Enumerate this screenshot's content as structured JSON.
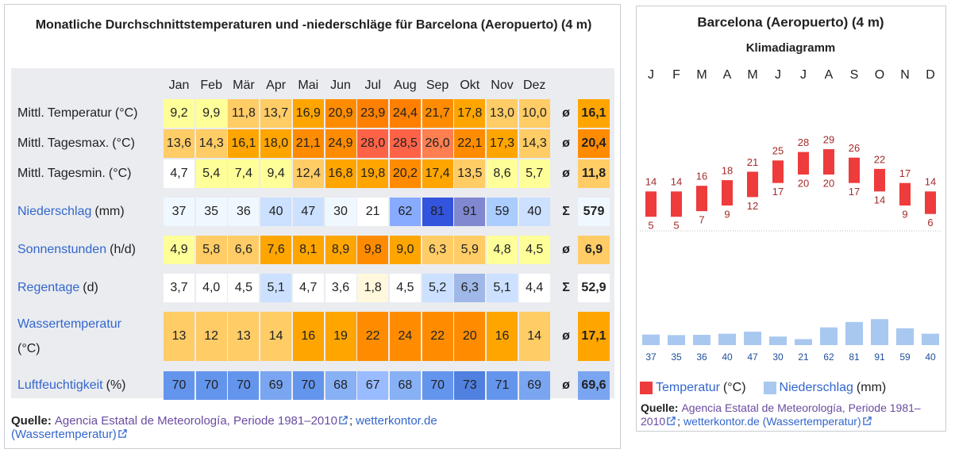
{
  "table": {
    "title": "Monatliche Durchschnittstemperaturen und -niederschläge für Barcelona (Aeropuerto) (4 m)",
    "months": [
      "Jan",
      "Feb",
      "Mär",
      "Apr",
      "Mai",
      "Jun",
      "Jul",
      "Aug",
      "Sep",
      "Okt",
      "Nov",
      "Dez"
    ],
    "rows": [
      {
        "label": "Mittl. Temperatur",
        "unit": "(°C)",
        "link": false,
        "values": [
          "9,2",
          "9,9",
          "11,8",
          "13,7",
          "16,9",
          "20,9",
          "23,9",
          "24,4",
          "21,7",
          "17,8",
          "13,0",
          "10,0"
        ],
        "colors": [
          "#ffff99",
          "#ffff99",
          "#ffcc66",
          "#ffcc66",
          "#ffa500",
          "#ff8c00",
          "#ff8000",
          "#ff8000",
          "#ff8c00",
          "#ffa500",
          "#ffcc66",
          "#ffcc66"
        ],
        "summary_symbol": "ø",
        "summary": "16,1",
        "summary_color": "#ffa500"
      },
      {
        "label": "Mittl. Tagesmax.",
        "unit": "(°C)",
        "link": false,
        "values": [
          "13,6",
          "14,3",
          "16,1",
          "18,0",
          "21,1",
          "24,9",
          "28,0",
          "28,5",
          "26,0",
          "22,1",
          "17,3",
          "14,3"
        ],
        "colors": [
          "#ffcc66",
          "#ffcc66",
          "#ffa500",
          "#ffa500",
          "#ff8c00",
          "#ff8c00",
          "#ff6347",
          "#ff6347",
          "#ff7f50",
          "#ff8c00",
          "#ffa500",
          "#ffcc66"
        ],
        "summary_symbol": "ø",
        "summary": "20,4",
        "summary_color": "#ff8c00"
      },
      {
        "label": "Mittl. Tagesmin.",
        "unit": "(°C)",
        "link": false,
        "values": [
          "4,7",
          "5,4",
          "7,4",
          "9,4",
          "12,4",
          "16,8",
          "19,8",
          "20,2",
          "17,4",
          "13,5",
          "8,6",
          "5,7"
        ],
        "colors": [
          "#ffffff",
          "#ffff99",
          "#ffff99",
          "#ffff99",
          "#ffcc66",
          "#ffa500",
          "#ffa500",
          "#ff8c00",
          "#ffa500",
          "#ffcc66",
          "#ffff99",
          "#ffff99"
        ],
        "summary_symbol": "ø",
        "summary": "11,8",
        "summary_color": "#ffcc66"
      },
      {
        "label": "Niederschlag",
        "unit": "(mm)",
        "link": true,
        "values": [
          "37",
          "35",
          "36",
          "40",
          "47",
          "30",
          "21",
          "62",
          "81",
          "91",
          "59",
          "40"
        ],
        "colors": [
          "#f0f8ff",
          "#f0f8ff",
          "#f0f8ff",
          "#cce0ff",
          "#cce0ff",
          "#f0f8ff",
          "#ffffff",
          "#88aaff",
          "#3355dd",
          "#8088d0",
          "#aaccff",
          "#cce0ff"
        ],
        "summary_symbol": "Σ",
        "summary": "579",
        "summary_color": "#f0f8ff"
      },
      {
        "label": "Sonnenstunden",
        "unit": "(h/d)",
        "link": true,
        "values": [
          "4,9",
          "5,8",
          "6,6",
          "7,6",
          "8,1",
          "8,9",
          "9,8",
          "9,0",
          "6,3",
          "5,9",
          "4,8",
          "4,5"
        ],
        "colors": [
          "#ffff99",
          "#ffcc66",
          "#ffcc66",
          "#ffa500",
          "#ffa500",
          "#ffa500",
          "#ff8c00",
          "#ffa500",
          "#ffcc66",
          "#ffcc66",
          "#ffff99",
          "#ffff99"
        ],
        "summary_symbol": "ø",
        "summary": "6,9",
        "summary_color": "#ffcc66"
      },
      {
        "label": "Regentage",
        "unit": "(d)",
        "link": true,
        "values": [
          "3,7",
          "4,0",
          "4,5",
          "5,1",
          "4,7",
          "3,6",
          "1,8",
          "4,5",
          "5,2",
          "6,3",
          "5,1",
          "4,4"
        ],
        "colors": [
          "#ffffff",
          "#ffffff",
          "#ffffff",
          "#cce0ff",
          "#ffffff",
          "#ffffff",
          "#fff8dc",
          "#ffffff",
          "#cce0ff",
          "#a0b8e8",
          "#cce0ff",
          "#ffffff"
        ],
        "summary_symbol": "Σ",
        "summary": "52,9",
        "summary_color": "#ffffff"
      },
      {
        "label": "Wassertemperatur",
        "unit": "(°C)",
        "link": true,
        "values": [
          "13",
          "12",
          "13",
          "14",
          "16",
          "19",
          "22",
          "24",
          "22",
          "20",
          "16",
          "14"
        ],
        "colors": [
          "#ffcc66",
          "#ffcc66",
          "#ffcc66",
          "#ffcc66",
          "#ffa500",
          "#ffa500",
          "#ff8c00",
          "#ff8c00",
          "#ff8c00",
          "#ff8c00",
          "#ffa500",
          "#ffcc66"
        ],
        "summary_symbol": "ø",
        "summary": "17,1",
        "summary_color": "#ffa500"
      },
      {
        "label": "Luftfeuchtigkeit",
        "unit": "(%)",
        "link": true,
        "values": [
          "70",
          "70",
          "70",
          "69",
          "70",
          "68",
          "67",
          "68",
          "70",
          "73",
          "71",
          "69"
        ],
        "colors": [
          "#6495ed",
          "#6495ed",
          "#6495ed",
          "#7aa5f0",
          "#6495ed",
          "#87b0f5",
          "#99bbff",
          "#87b0f5",
          "#6495ed",
          "#5080e0",
          "#6495ed",
          "#7aa5f0"
        ],
        "summary_symbol": "ø",
        "summary": "69,6",
        "summary_color": "#7aa5f0"
      }
    ],
    "source": {
      "label": "Quelle:",
      "link1": "Agencia Estatal de Meteorología, Periode 1981–2010",
      "separator": ";",
      "link2": "wetterkontor.de (Wassertemperatur)"
    }
  },
  "chart_data": {
    "type": "climate",
    "title": "Barcelona (Aeropuerto) (4 m)",
    "subtitle": "Klimadiagramm",
    "categories": [
      "J",
      "F",
      "M",
      "A",
      "M",
      "J",
      "J",
      "A",
      "S",
      "O",
      "N",
      "D"
    ],
    "series": [
      {
        "name": "Temperatur",
        "unit": "(°C)",
        "color": "#ee3b3b",
        "max": [
          14,
          14,
          16,
          18,
          21,
          25,
          28,
          29,
          26,
          22,
          17,
          14
        ],
        "min": [
          5,
          5,
          7,
          9,
          12,
          17,
          20,
          20,
          17,
          14,
          9,
          6
        ]
      },
      {
        "name": "Niederschlag",
        "unit": "(mm)",
        "color": "#a9c8f0",
        "values": [
          37,
          35,
          36,
          40,
          47,
          30,
          21,
          62,
          81,
          91,
          59,
          40
        ]
      }
    ],
    "source": {
      "label": "Quelle:",
      "link1": "Agencia Estatal de Meteorología, Periode 1981–2010",
      "separator": ";",
      "link2": "wetterkontor.de (Wassertemperatur)"
    }
  }
}
